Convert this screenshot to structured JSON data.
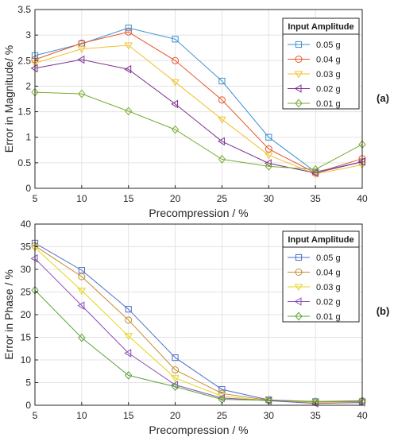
{
  "chart_data": [
    {
      "type": "line",
      "panel_label": "(a)",
      "xlabel": "Precompression / %",
      "ylabel": "Error in Magnitude/ %",
      "x": [
        5,
        10,
        15,
        20,
        25,
        30,
        35,
        40
      ],
      "xlim": [
        5,
        40
      ],
      "ylim": [
        0,
        3.5
      ],
      "xticks": [
        "5",
        "10",
        "15",
        "20",
        "25",
        "30",
        "35",
        "40"
      ],
      "yticks": [
        "0",
        "0.5",
        "1",
        "1.5",
        "2",
        "2.5",
        "3",
        "3.5"
      ],
      "grid": true,
      "legend_title": "Input Amplitude",
      "legend_position": "top-right",
      "series": [
        {
          "name": "0.05 g",
          "color": "#3a8fd0",
          "marker": "square",
          "values": [
            2.6,
            2.83,
            3.14,
            2.92,
            2.1,
            1.0,
            0.32,
            0.52
          ]
        },
        {
          "name": "0.04 g",
          "color": "#e8542a",
          "marker": "circle",
          "values": [
            2.52,
            2.84,
            3.06,
            2.5,
            1.73,
            0.77,
            0.3,
            0.58
          ]
        },
        {
          "name": "0.03 g",
          "color": "#f2c12e",
          "marker": "triangle-down",
          "values": [
            2.45,
            2.73,
            2.8,
            2.08,
            1.35,
            0.65,
            0.28,
            0.46
          ]
        },
        {
          "name": "0.02 g",
          "color": "#7e2f8e",
          "marker": "triangle-left",
          "values": [
            2.35,
            2.52,
            2.33,
            1.65,
            0.92,
            0.49,
            0.3,
            0.52
          ]
        },
        {
          "name": "0.01 g",
          "color": "#77ac30",
          "marker": "diamond",
          "values": [
            1.88,
            1.85,
            1.51,
            1.15,
            0.57,
            0.43,
            0.37,
            0.86
          ]
        }
      ]
    },
    {
      "type": "line",
      "panel_label": "(b)",
      "xlabel": "Precompression / %",
      "ylabel": "Error in Phase / %",
      "x": [
        5,
        10,
        15,
        20,
        25,
        30,
        35,
        40
      ],
      "xlim": [
        5,
        40
      ],
      "ylim": [
        0,
        40
      ],
      "xticks": [
        "5",
        "10",
        "15",
        "20",
        "25",
        "30",
        "35",
        "40"
      ],
      "yticks": [
        "0",
        "5",
        "10",
        "15",
        "20",
        "25",
        "30",
        "35",
        "40"
      ],
      "grid": true,
      "legend_title": "Input Amplitude",
      "legend_position": "top-right",
      "series": [
        {
          "name": "0.05 g",
          "color": "#4d6fc9",
          "marker": "square",
          "values": [
            35.8,
            29.8,
            21.2,
            10.5,
            3.5,
            1.2,
            0.8,
            0.8
          ]
        },
        {
          "name": "0.04 g",
          "color": "#c48a2f",
          "marker": "circle",
          "values": [
            35.2,
            28.4,
            18.8,
            7.8,
            2.6,
            1.1,
            0.7,
            0.9
          ]
        },
        {
          "name": "0.03 g",
          "color": "#e3d51c",
          "marker": "triangle-down",
          "values": [
            34.8,
            25.3,
            15.3,
            6.0,
            2.0,
            1.0,
            0.6,
            0.6
          ]
        },
        {
          "name": "0.02 g",
          "color": "#8a4fb8",
          "marker": "triangle-left",
          "values": [
            32.4,
            22.0,
            11.5,
            4.5,
            1.6,
            1.0,
            0.4,
            0.6
          ]
        },
        {
          "name": "0.01 g",
          "color": "#5aa33a",
          "marker": "diamond",
          "values": [
            25.4,
            14.9,
            6.6,
            4.1,
            1.3,
            1.1,
            0.8,
            1.0
          ]
        }
      ]
    }
  ]
}
